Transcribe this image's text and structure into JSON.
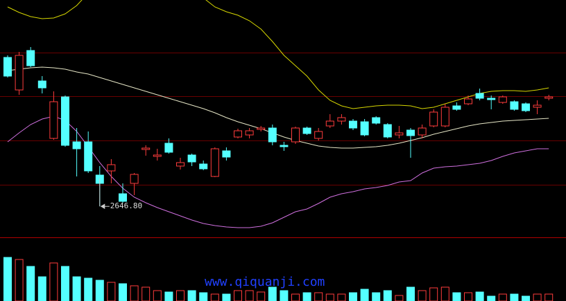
{
  "chart_data": {
    "type": "candlestick",
    "low_label": "2646.80",
    "watermark": "www.qiquanji.com",
    "ylim": [
      2600,
      2945
    ],
    "vlim": [
      0,
      90
    ],
    "up_color": "#ff3c3c",
    "down_color": "#54ffff",
    "band_colors": {
      "upper": "#d8d800",
      "middle": "#e8e8c8",
      "lower": "#d070e0"
    },
    "ohlc": [
      [
        2862,
        2865,
        2833,
        2835
      ],
      [
        2815,
        2870,
        2808,
        2865
      ],
      [
        2872,
        2877,
        2848,
        2850
      ],
      [
        2828,
        2835,
        2810,
        2818
      ],
      [
        2745,
        2813,
        2743,
        2798
      ],
      [
        2805,
        2807,
        2733,
        2735
      ],
      [
        2740,
        2760,
        2690,
        2730
      ],
      [
        2740,
        2755,
        2695,
        2698
      ],
      [
        2692,
        2705,
        2646.8,
        2680
      ],
      [
        2698,
        2715,
        2680,
        2707
      ],
      [
        2665,
        2680,
        2652,
        2654
      ],
      [
        2680,
        2695,
        2663,
        2693
      ],
      [
        2729,
        2735,
        2720,
        2731
      ],
      [
        2719,
        2730,
        2713,
        2721
      ],
      [
        2738,
        2745,
        2723,
        2725
      ],
      [
        2705,
        2717,
        2700,
        2710
      ],
      [
        2721,
        2723,
        2705,
        2711
      ],
      [
        2708,
        2713,
        2699,
        2701
      ],
      [
        2690,
        2732,
        2689,
        2730
      ],
      [
        2727,
        2732,
        2713,
        2718
      ],
      [
        2747,
        2759,
        2745,
        2756
      ],
      [
        2750,
        2760,
        2745,
        2756
      ],
      [
        2758,
        2763,
        2755,
        2760
      ],
      [
        2760,
        2765,
        2735,
        2740
      ],
      [
        2735,
        2740,
        2727,
        2733
      ],
      [
        2740,
        2762,
        2737,
        2760
      ],
      [
        2760,
        2762,
        2750,
        2752
      ],
      [
        2745,
        2760,
        2742,
        2755
      ],
      [
        2763,
        2780,
        2760,
        2770
      ],
      [
        2770,
        2780,
        2765,
        2775
      ],
      [
        2770,
        2773,
        2757,
        2760
      ],
      [
        2769,
        2773,
        2748,
        2750
      ],
      [
        2775,
        2777,
        2765,
        2767
      ],
      [
        2765,
        2767,
        2745,
        2747
      ],
      [
        2750,
        2763,
        2745,
        2753
      ],
      [
        2757,
        2760,
        2717,
        2749
      ],
      [
        2750,
        2765,
        2745,
        2760
      ],
      [
        2763,
        2787,
        2761,
        2783
      ],
      [
        2763,
        2795,
        2761,
        2790
      ],
      [
        2792,
        2797,
        2785,
        2787
      ],
      [
        2795,
        2807,
        2793,
        2802
      ],
      [
        2810,
        2817,
        2800,
        2803
      ],
      [
        2803,
        2807,
        2787,
        2801
      ],
      [
        2797,
        2807,
        2795,
        2805
      ],
      [
        2798,
        2800,
        2785,
        2787
      ],
      [
        2795,
        2797,
        2783,
        2785
      ],
      [
        2790,
        2800,
        2780,
        2793
      ],
      [
        2803,
        2808,
        2800,
        2805
      ]
    ],
    "volume": [
      63,
      60,
      50,
      35,
      55,
      50,
      35,
      33,
      30,
      27,
      25,
      22,
      20,
      15,
      13,
      15,
      15,
      12,
      10,
      10,
      15,
      15,
      13,
      20,
      15,
      10,
      12,
      12,
      10,
      10,
      12,
      17,
      12,
      15,
      8,
      20,
      15,
      19,
      20,
      12,
      12,
      13,
      7,
      10,
      10,
      7,
      10,
      10
    ],
    "bands": {
      "upper": [
        2935,
        2927,
        2921,
        2918,
        2919,
        2925,
        2937,
        2955,
        2965,
        2973,
        2977,
        2978,
        2978,
        2975,
        2970,
        2963,
        2955,
        2948,
        2935,
        2928,
        2923,
        2915,
        2903,
        2885,
        2865,
        2850,
        2835,
        2815,
        2800,
        2792,
        2788,
        2790,
        2792,
        2793,
        2793,
        2792,
        2788,
        2790,
        2795,
        2800,
        2805,
        2810,
        2813,
        2814,
        2814,
        2813,
        2815,
        2818
      ],
      "middle": [
        2843,
        2845,
        2847,
        2848,
        2847,
        2845,
        2841,
        2838,
        2833,
        2828,
        2823,
        2818,
        2813,
        2808,
        2803,
        2798,
        2793,
        2788,
        2782,
        2775,
        2769,
        2764,
        2759,
        2753,
        2747,
        2742,
        2738,
        2734,
        2732,
        2731,
        2731,
        2732,
        2733,
        2735,
        2738,
        2742,
        2746,
        2751,
        2755,
        2759,
        2763,
        2766,
        2768,
        2770,
        2771,
        2772,
        2773,
        2774
      ],
      "lower": [
        2740,
        2753,
        2765,
        2773,
        2777,
        2771,
        2755,
        2733,
        2710,
        2690,
        2673,
        2660,
        2652,
        2645,
        2639,
        2633,
        2627,
        2622,
        2619,
        2617,
        2616,
        2616,
        2618,
        2623,
        2631,
        2639,
        2643,
        2651,
        2660,
        2665,
        2668,
        2672,
        2674,
        2677,
        2682,
        2684,
        2695,
        2702,
        2704,
        2705,
        2707,
        2709,
        2713,
        2719,
        2724,
        2727,
        2730,
        2730
      ]
    }
  }
}
